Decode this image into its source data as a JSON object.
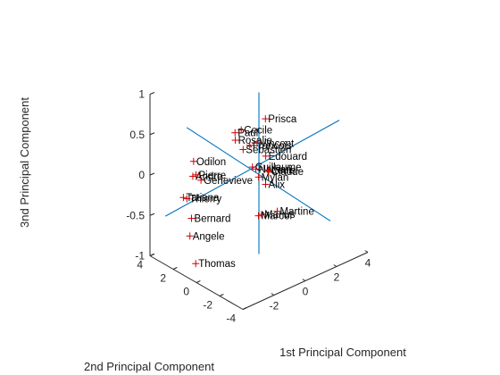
{
  "chart_data": {
    "type": "scatter",
    "projection": "3d",
    "xlabel": "1st Principal Component",
    "ylabel": "2nd Principal Component",
    "zlabel": "3nd Principal Component",
    "xlim": [
      -4,
      4
    ],
    "ylim": [
      -4,
      4
    ],
    "zlim": [
      -1,
      1
    ],
    "xticks": [
      "-2",
      "0",
      "2",
      "4"
    ],
    "xtick_values": [
      -2,
      0,
      2,
      4
    ],
    "yticks": [
      "-4",
      "-2",
      "0",
      "2",
      "4"
    ],
    "ytick_values": [
      -4,
      -2,
      0,
      2,
      4
    ],
    "zticks": [
      "-1",
      "-0.5",
      "0",
      "0.5",
      "1"
    ],
    "ztick_values": [
      -1,
      -0.5,
      0,
      0.5,
      1
    ],
    "marker_color": "#cc0000",
    "vector_color": "#0072bd",
    "points": [
      {
        "name": "Paul",
        "x": 0.4,
        "y": 2.6,
        "z": 0.25
      },
      {
        "name": "Cecile",
        "x": 0.8,
        "y": 2.6,
        "z": 0.25
      },
      {
        "name": "Prisca",
        "x": 2.2,
        "y": 2.4,
        "z": 0.28
      },
      {
        "name": "Rosalie",
        "x": 0.2,
        "y": 2.3,
        "z": 0.2
      },
      {
        "name": "Sebastien",
        "x": 0.4,
        "y": 1.9,
        "z": 0.1
      },
      {
        "name": "Francois",
        "x": 0.9,
        "y": 2.0,
        "z": 0.1
      },
      {
        "name": "Vincent",
        "x": 1.3,
        "y": 1.9,
        "z": 0.1
      },
      {
        "name": "Odilon",
        "x": -2.1,
        "y": 2.8,
        "z": 0.1
      },
      {
        "name": "Andre",
        "x": -2.3,
        "y": 2.6,
        "z": -0.05
      },
      {
        "name": "Pierre",
        "x": -2.1,
        "y": 2.6,
        "z": -0.05
      },
      {
        "name": "Genevieve",
        "x": -2.0,
        "y": 2.3,
        "z": -0.1
      },
      {
        "name": "Tatiana",
        "x": -3.2,
        "y": 2.2,
        "z": -0.2
      },
      {
        "name": "Thierry",
        "x": -2.9,
        "y": 2.3,
        "z": -0.25
      },
      {
        "name": "Guillaume",
        "x": 0.4,
        "y": 1.1,
        "z": -0.05
      },
      {
        "name": "Edouard",
        "x": 1.4,
        "y": 1.3,
        "z": -0.02
      },
      {
        "name": "Nathan",
        "x": 0.4,
        "y": 0.8,
        "z": -0.05
      },
      {
        "name": "Mylan",
        "x": 0.5,
        "y": 0.7,
        "z": -0.15
      },
      {
        "name": "Claude",
        "x": 1.2,
        "y": 0.8,
        "z": -0.15
      },
      {
        "name": "Louis",
        "x": 1.3,
        "y": 0.9,
        "z": -0.15
      },
      {
        "name": "Alix",
        "x": 0.8,
        "y": 0.5,
        "z": -0.25
      },
      {
        "name": "Bernard",
        "x": -3.2,
        "y": 1.5,
        "z": -0.4
      },
      {
        "name": "Angele",
        "x": -3.6,
        "y": 1.1,
        "z": -0.55
      },
      {
        "name": "Thomas",
        "x": -3.6,
        "y": 0.6,
        "z": -0.85
      },
      {
        "name": "Marius",
        "x": -0.2,
        "y": -0.5,
        "z": -0.45
      },
      {
        "name": "Marcel",
        "x": -0.4,
        "y": -0.5,
        "z": -0.45
      },
      {
        "name": "Martine",
        "x": 0.8,
        "y": -0.5,
        "z": -0.5
      }
    ],
    "vectors": [
      {
        "from": [
          -4.5,
          2.0,
          -0.3
        ],
        "to": [
          4.4,
          -1.0,
          0.35
        ]
      },
      {
        "from": [
          -1.5,
          4.2,
          0.35
        ],
        "to": [
          1.6,
          -4.0,
          -0.4
        ]
      },
      {
        "from": [
          0,
          0,
          -1.0
        ],
        "to": [
          0,
          0,
          1.0
        ]
      }
    ]
  }
}
